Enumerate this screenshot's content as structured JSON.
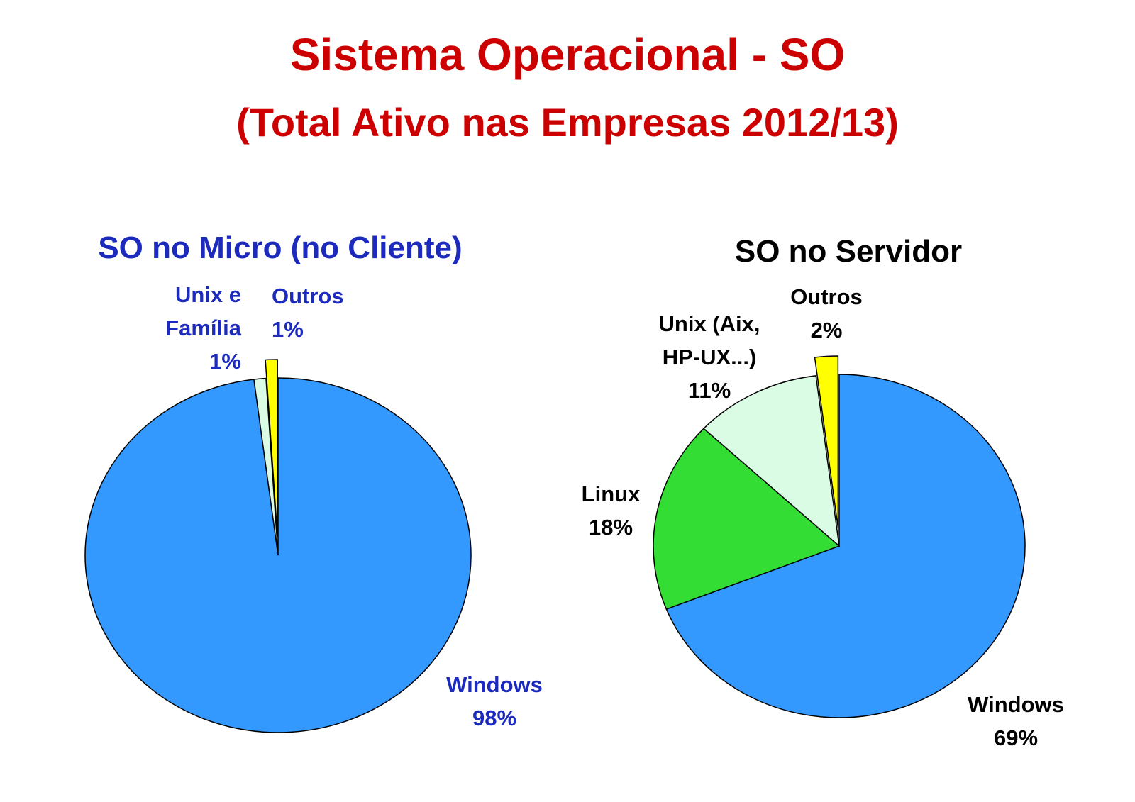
{
  "title": "Sistema Operacional - SO",
  "subtitle": "(Total Ativo nas Empresas 2012/13)",
  "chart_data": [
    {
      "type": "pie",
      "title": "SO no Micro (no Cliente)",
      "categories": [
        "Windows",
        "Unix e Família",
        "Outros"
      ],
      "values": [
        98,
        1,
        1
      ],
      "value_labels": [
        "98%",
        "1%",
        "1%"
      ],
      "colors": [
        "#3399ff",
        "#dafbe4",
        "#ffff00"
      ]
    },
    {
      "type": "pie",
      "title": "SO no Servidor",
      "categories": [
        "Windows",
        "Linux",
        "Unix (Aix, HP-UX...)",
        "Outros"
      ],
      "values": [
        69,
        18,
        11,
        2
      ],
      "value_labels": [
        "69%",
        "18%",
        "11%",
        "2%"
      ],
      "colors": [
        "#3399ff",
        "#33dd33",
        "#dafbe4",
        "#ffff00"
      ]
    }
  ]
}
